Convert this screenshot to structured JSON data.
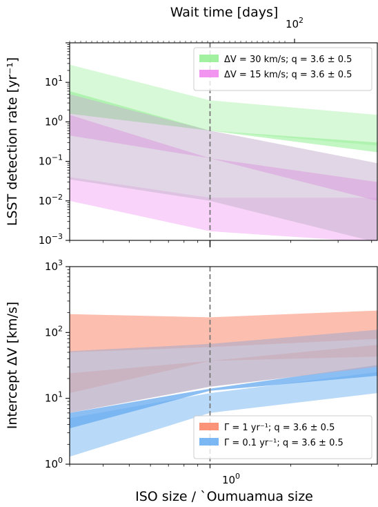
{
  "figure": {
    "top_axis_label": "Wait time [days]",
    "top_tick_label": {
      "base": "10",
      "exp": "2"
    },
    "top_tick_value_days": 100,
    "xlabel": "ISO size / `Oumuamua size",
    "x_tick_label": {
      "base": "10",
      "exp": "0"
    }
  },
  "chart_data": [
    {
      "type": "area",
      "title": "",
      "ylabel": "LSST detection rate [yr⁻¹]",
      "xlim": [
        0.3,
        4.2
      ],
      "ylim": [
        0.001,
        100
      ],
      "log_x": true,
      "log_y": true,
      "y_ticks": [
        {
          "value": 0.001,
          "base": "10",
          "exp": "−3"
        },
        {
          "value": 0.01,
          "base": "10",
          "exp": "−2"
        },
        {
          "value": 0.1,
          "base": "10",
          "exp": "−1"
        },
        {
          "value": 1,
          "base": "10",
          "exp": "0"
        },
        {
          "value": 10,
          "base": "10",
          "exp": "1"
        }
      ],
      "vline_x": 1,
      "legend_position": "top-right",
      "series": [
        {
          "name": "ΔV = 30 km/s;  q = 3.6 ± 0.5",
          "color": "#90ee90",
          "bands": [
            {
              "x": [
                0.3,
                1,
                4.2
              ],
              "lower": [
                1.6,
                0.6,
                0.25
              ],
              "upper": [
                28,
                3.5,
                1.5
              ],
              "opacity": 0.35
            },
            {
              "x": [
                0.3,
                1,
                4.2
              ],
              "lower": [
                1.6,
                0.6,
                0.17
              ],
              "upper": [
                6,
                0.6,
                0.3
              ],
              "opacity": 0.55
            }
          ]
        },
        {
          "name": "ΔV = 15 km/s;  q = 3.6 ± 0.5",
          "color": "#ee82ee",
          "bands": [
            {
              "x": [
                0.3,
                1,
                4.2
              ],
              "lower": [
                0.01,
                0.0017,
                0.0005
              ],
              "upper": [
                0.04,
                0.012,
                0.012
              ],
              "opacity": 0.35
            },
            {
              "x": [
                0.3,
                1,
                4.2
              ],
              "lower": [
                0.45,
                0.12,
                0.01
              ],
              "upper": [
                1.5,
                0.12,
                0.03
              ],
              "opacity": 0.55
            }
          ]
        },
        {
          "name": "",
          "color": "#c8b4d0",
          "bands": [
            {
              "x": [
                0.3,
                1,
                4.2
              ],
              "lower": [
                0.035,
                0.01,
                0.0008
              ],
              "upper": [
                5,
                0.6,
                0.09
              ],
              "opacity": 0.55
            }
          ]
        }
      ]
    },
    {
      "type": "area",
      "title": "",
      "ylabel": "Intercept ΔV [km/s]",
      "xlabel": "ISO size / `Oumuamua size",
      "xlim": [
        0.3,
        4.2
      ],
      "ylim": [
        1,
        1000
      ],
      "log_x": true,
      "log_y": true,
      "y_ticks": [
        {
          "value": 1,
          "base": "10",
          "exp": "0"
        },
        {
          "value": 10,
          "base": "10",
          "exp": "1"
        },
        {
          "value": 100,
          "base": "10",
          "exp": "2"
        },
        {
          "value": 1000,
          "base": "10",
          "exp": "3"
        }
      ],
      "vline_x": 1,
      "legend_position": "bottom-right",
      "series": [
        {
          "name": "Γ = 1 yr⁻¹; q = 3.6 ± 0.5",
          "color": "#fa8060",
          "bands": [
            {
              "x": [
                0.3,
                1,
                4.2
              ],
              "lower": [
                50,
                60,
                80
              ],
              "upper": [
                190,
                170,
                215
              ],
              "opacity": 0.5
            },
            {
              "x": [
                0.3,
                1,
                4.2
              ],
              "lower": [
                12,
                37,
                43
              ],
              "upper": [
                24,
                37,
                65
              ],
              "opacity": 0.45
            }
          ]
        },
        {
          "name": "Γ = 0.1 yr⁻¹; q = 3.6 ± 0.5",
          "color": "#64aaf0",
          "bands": [
            {
              "x": [
                0.3,
                1,
                4.2
              ],
              "lower": [
                1.3,
                6,
                12
              ],
              "upper": [
                5,
                12,
                25
              ],
              "opacity": 0.45
            },
            {
              "x": [
                0.3,
                1,
                4.2
              ],
              "lower": [
                3.5,
                13,
                22
              ],
              "upper": [
                6,
                14,
                32
              ],
              "opacity": 0.75
            }
          ]
        },
        {
          "name": "",
          "color": "#b9aec4",
          "bands": [
            {
              "x": [
                0.3,
                1,
                4.2
              ],
              "lower": [
                6,
                15,
                30
              ],
              "upper": [
                52,
                67,
                110
              ],
              "opacity": 0.75
            }
          ]
        }
      ]
    }
  ]
}
